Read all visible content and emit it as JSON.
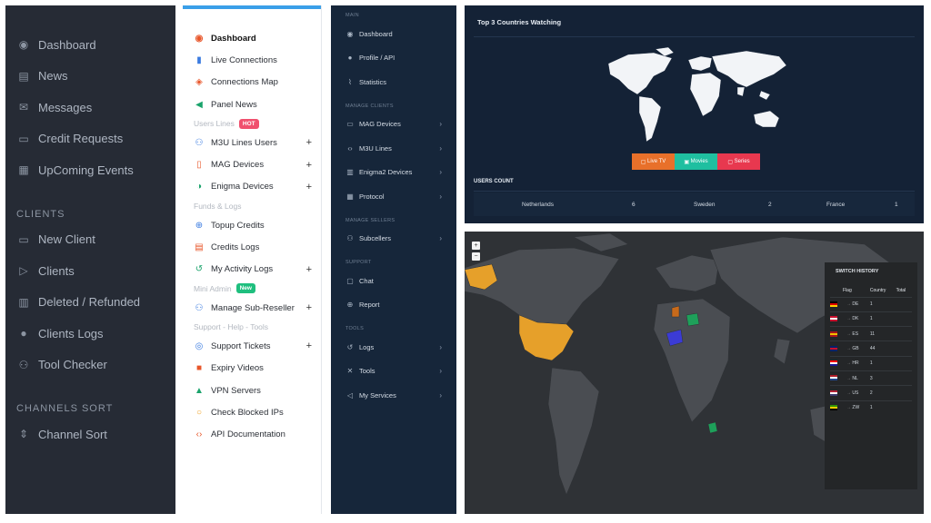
{
  "panel_sidebar_dark": {
    "items_top": [
      {
        "label": "Dashboard",
        "icon": "dashboard-icon"
      },
      {
        "label": "News",
        "icon": "news-icon"
      },
      {
        "label": "Messages",
        "icon": "envelope-icon"
      },
      {
        "label": "Credit Requests",
        "icon": "credit-card-icon"
      },
      {
        "label": "UpComing Events",
        "icon": "calendar-icon"
      }
    ],
    "clients_header": "CLIENTS",
    "items_clients": [
      {
        "label": "New Client",
        "icon": "monitor-icon"
      },
      {
        "label": "Clients",
        "icon": "play-icon"
      },
      {
        "label": "Deleted / Refunded",
        "icon": "trash-icon"
      },
      {
        "label": "Clients Logs",
        "icon": "user-icon"
      },
      {
        "label": "Tool Checker",
        "icon": "users-icon"
      }
    ],
    "channels_header": "CHANNELS SORT",
    "items_channels": [
      {
        "label": "Channel Sort",
        "icon": "sort-icon"
      }
    ]
  },
  "panel_menu_light": {
    "items": [
      {
        "label": "Dashboard",
        "icon": "dashboard-icon",
        "color": "#e8562a"
      },
      {
        "label": "Live Connections",
        "icon": "signal-bars-icon",
        "color": "#3a7be0"
      },
      {
        "label": "Connections Map",
        "icon": "map-icon",
        "color": "#e8562a"
      },
      {
        "label": "Panel News",
        "icon": "megaphone-icon",
        "color": "#1aa36b"
      }
    ],
    "users_lines": {
      "label": "Users Lines",
      "badge": "HOT",
      "badge_color": "#f0506e"
    },
    "users_items": [
      {
        "label": "M3U Lines Users",
        "icon": "users-icon",
        "color": "#3a7be0",
        "plus": "+"
      },
      {
        "label": "MAG Devices",
        "icon": "tablet-icon",
        "color": "#e8562a",
        "plus": "+"
      },
      {
        "label": "Enigma Devices",
        "icon": "enigma-icon",
        "color": "#1aa36b",
        "plus": "+"
      }
    ],
    "funds_header": "Funds & Logs",
    "funds_items": [
      {
        "label": "Topup Credits",
        "icon": "plus-circle-icon",
        "color": "#3a7be0",
        "plus": ""
      },
      {
        "label": "Credits Logs",
        "icon": "document-icon",
        "color": "#e8562a",
        "plus": ""
      },
      {
        "label": "My Activity Logs",
        "icon": "history-icon",
        "color": "#1aa36b",
        "plus": "+"
      }
    ],
    "mini_admin": {
      "label": "Mini Admin",
      "badge": "New",
      "badge_color": "#1fbf7e"
    },
    "mini_items": [
      {
        "label": "Manage Sub-Reseller",
        "icon": "users-group-icon",
        "color": "#3a7be0",
        "plus": "+"
      }
    ],
    "support_header": "Support - Help - Tools",
    "support_items": [
      {
        "label": "Support Tickets",
        "icon": "lifebuoy-icon",
        "color": "#3a7be0",
        "plus": "+"
      },
      {
        "label": "Expiry Videos",
        "icon": "video-icon",
        "color": "#e8562a",
        "plus": ""
      },
      {
        "label": "VPN Servers",
        "icon": "lock-icon",
        "color": "#1aa36b",
        "plus": ""
      },
      {
        "label": "Check Blocked IPs",
        "icon": "search-icon",
        "color": "#f0a020",
        "plus": ""
      },
      {
        "label": "API Documentation",
        "icon": "code-icon",
        "color": "#e8562a",
        "plus": ""
      }
    ]
  },
  "panel_menu_navy": {
    "sec_main": "MAIN",
    "main_items": [
      {
        "label": "Dashboard",
        "icon": "dashboard-icon",
        "chev": ""
      },
      {
        "label": "Profile / API",
        "icon": "user-icon",
        "chev": ""
      },
      {
        "label": "Statistics",
        "icon": "chart-icon",
        "chev": ""
      }
    ],
    "sec_clients": "MANAGE CLIENTS",
    "client_items": [
      {
        "label": "MAG Devices",
        "icon": "monitor-icon",
        "chev": "›"
      },
      {
        "label": "M3U Lines",
        "icon": "code-icon",
        "chev": "›"
      },
      {
        "label": "Enigma2 Devices",
        "icon": "server-icon",
        "chev": "›"
      },
      {
        "label": "Protocol",
        "icon": "grid-icon",
        "chev": "›"
      }
    ],
    "sec_sellers": "MANAGE SELLERS",
    "seller_items": [
      {
        "label": "Subcellers",
        "icon": "users-icon",
        "chev": "›"
      }
    ],
    "sec_support": "SUPPORT",
    "support_items": [
      {
        "label": "Chat",
        "icon": "chat-icon",
        "chev": ""
      },
      {
        "label": "Report",
        "icon": "report-icon",
        "chev": ""
      }
    ],
    "sec_tools": "TOOLS",
    "tool_items": [
      {
        "label": "Logs",
        "icon": "history-icon",
        "chev": "›"
      },
      {
        "label": "Tools",
        "icon": "tools-icon",
        "chev": "›"
      },
      {
        "label": "My Services",
        "icon": "send-icon",
        "chev": "›"
      }
    ]
  },
  "top_countries": {
    "title": "Top 3 Countries Watching",
    "buttons": [
      {
        "label": "Live TV",
        "icon": "tv-icon",
        "color": "#e8702a"
      },
      {
        "label": "Movies",
        "icon": "film-icon",
        "color": "#1fbfa0"
      },
      {
        "label": "Series",
        "icon": "series-icon",
        "color": "#e8384f"
      }
    ],
    "users_count_label": "USERS COUNT",
    "countries": [
      {
        "name": "Netherlands",
        "count": "6"
      },
      {
        "name": "Sweden",
        "count": "2"
      },
      {
        "name": "France",
        "count": "1"
      }
    ]
  },
  "switch_map": {
    "zoom_in": "+",
    "zoom_out": "−",
    "history_title": "SWITCH HISTORY",
    "columns": [
      "Flag",
      "Country",
      "Total"
    ],
    "rows": [
      {
        "flag": "DE",
        "country": "DE",
        "total": "1",
        "c1": "#000000",
        "c2": "#dd0000",
        "c3": "#ffce00"
      },
      {
        "flag": "DK",
        "country": "DK",
        "total": "1",
        "c1": "#c8102e",
        "c2": "#ffffff",
        "c3": "#c8102e"
      },
      {
        "flag": "ES",
        "country": "ES",
        "total": "11",
        "c1": "#aa151b",
        "c2": "#f1bf00",
        "c3": "#aa151b"
      },
      {
        "flag": "GB",
        "country": "GB",
        "total": "44",
        "c1": "#012169",
        "c2": "#c8102e",
        "c3": "#012169"
      },
      {
        "flag": "HR",
        "country": "HR",
        "total": "1",
        "c1": "#ff0000",
        "c2": "#ffffff",
        "c3": "#171796"
      },
      {
        "flag": "NL",
        "country": "NL",
        "total": "3",
        "c1": "#ae1c28",
        "c2": "#ffffff",
        "c3": "#21468b"
      },
      {
        "flag": "US",
        "country": "US",
        "total": "2",
        "c1": "#b22234",
        "c2": "#ffffff",
        "c3": "#3c3b6e"
      },
      {
        "flag": "ZW",
        "country": "ZW",
        "total": "1",
        "c1": "#319208",
        "c2": "#ffd200",
        "c3": "#000000"
      }
    ],
    "highlight_colors": {
      "usa": "#e6a02a",
      "spain": "#3b3bd6",
      "germany": "#1ea05a",
      "gb": "#c86a1a",
      "zimbabwe": "#1ea05a"
    }
  }
}
